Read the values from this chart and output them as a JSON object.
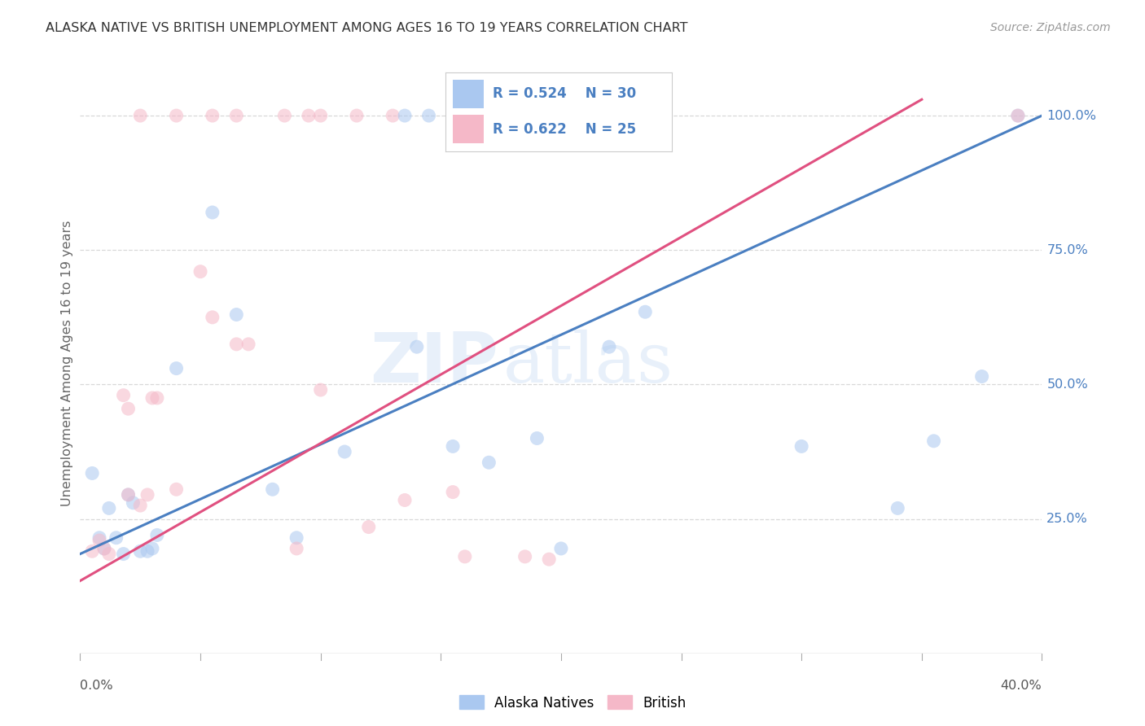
{
  "title": "ALASKA NATIVE VS BRITISH UNEMPLOYMENT AMONG AGES 16 TO 19 YEARS CORRELATION CHART",
  "source": "Source: ZipAtlas.com",
  "ylabel": "Unemployment Among Ages 16 to 19 years",
  "xlim": [
    0.0,
    0.4
  ],
  "ylim": [
    0.0,
    1.08
  ],
  "ytick_positions": [
    0.25,
    0.5,
    0.75,
    1.0
  ],
  "ytick_labels": [
    "25.0%",
    "50.0%",
    "75.0%",
    "100.0%"
  ],
  "alaska_R": 0.524,
  "alaska_N": 30,
  "british_R": 0.622,
  "british_N": 25,
  "alaska_color": "#aac8f0",
  "british_color": "#f5b8c8",
  "alaska_line_color": "#4a7fc1",
  "british_line_color": "#e05080",
  "alaska_scatter_x": [
    0.005,
    0.008,
    0.01,
    0.012,
    0.015,
    0.018,
    0.02,
    0.022,
    0.025,
    0.028,
    0.03,
    0.032,
    0.04,
    0.055,
    0.065,
    0.08,
    0.09,
    0.11,
    0.14,
    0.155,
    0.17,
    0.19,
    0.2,
    0.22,
    0.235,
    0.3,
    0.34,
    0.355,
    0.375,
    0.39
  ],
  "alaska_scatter_y": [
    0.335,
    0.215,
    0.195,
    0.27,
    0.215,
    0.185,
    0.295,
    0.28,
    0.19,
    0.19,
    0.195,
    0.22,
    0.53,
    0.82,
    0.63,
    0.305,
    0.215,
    0.375,
    0.57,
    0.385,
    0.355,
    0.4,
    0.195,
    0.57,
    0.635,
    0.385,
    0.27,
    0.395,
    0.515,
    1.0
  ],
  "british_scatter_x": [
    0.005,
    0.008,
    0.01,
    0.012,
    0.018,
    0.02,
    0.025,
    0.028,
    0.032,
    0.04,
    0.05,
    0.055,
    0.065,
    0.07,
    0.09,
    0.1,
    0.12,
    0.135,
    0.155,
    0.16,
    0.185,
    0.195,
    0.02,
    0.03,
    0.39
  ],
  "british_scatter_y": [
    0.19,
    0.21,
    0.195,
    0.185,
    0.48,
    0.455,
    0.275,
    0.295,
    0.475,
    0.305,
    0.71,
    0.625,
    0.575,
    0.575,
    0.195,
    0.49,
    0.235,
    0.285,
    0.3,
    0.18,
    0.18,
    0.175,
    0.295,
    0.475,
    1.0
  ],
  "british_top_x": [
    0.025,
    0.04,
    0.055,
    0.065,
    0.085,
    0.095,
    0.1,
    0.115,
    0.13
  ],
  "british_top_y": [
    1.0,
    1.0,
    1.0,
    1.0,
    1.0,
    1.0,
    1.0,
    1.0,
    1.0
  ],
  "alaska_top_x": [
    0.135,
    0.145,
    0.155,
    0.17,
    0.175,
    0.185
  ],
  "alaska_top_y": [
    1.0,
    1.0,
    1.0,
    1.0,
    1.0,
    1.0
  ],
  "alaska_line_x": [
    0.0,
    0.4
  ],
  "alaska_line_y": [
    0.185,
    1.0
  ],
  "british_line_x": [
    0.0,
    0.35
  ],
  "british_line_y": [
    0.135,
    1.03
  ],
  "watermark_zip": "ZIP",
  "watermark_atlas": "atlas",
  "background_color": "#ffffff",
  "grid_color": "#d8d8d8",
  "scatter_size": 150,
  "scatter_alpha": 0.55
}
